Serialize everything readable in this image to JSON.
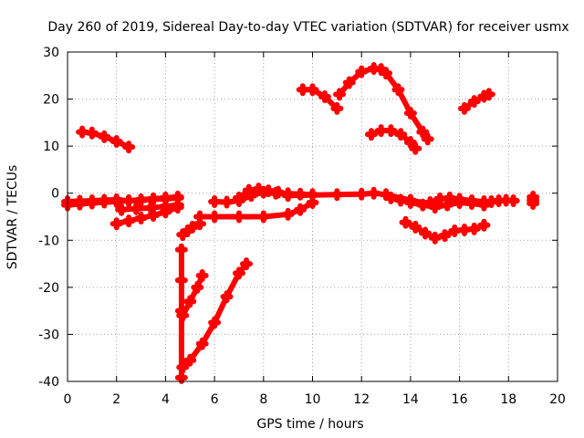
{
  "chart_data": {
    "type": "scatter",
    "title": "Day 260 of 2019, Sidereal Day-to-day VTEC variation (SDTVAR) for receiver usmx",
    "xlabel": "GPS time / hours",
    "ylabel": "SDTVAR / TECUs",
    "xlim": [
      0,
      20
    ],
    "ylim": [
      -40,
      30
    ],
    "xticks": [
      0,
      2,
      4,
      6,
      8,
      10,
      12,
      14,
      16,
      18,
      20
    ],
    "yticks": [
      -40,
      -30,
      -20,
      -10,
      0,
      10,
      20,
      30
    ],
    "grid": true,
    "legend": "none",
    "marker": "+",
    "color": "#ff0000",
    "series": [
      {
        "x": [
          0.0,
          0.5,
          1.0,
          1.5,
          2.0,
          2.5,
          3.0,
          3.5,
          4.0,
          4.5
        ],
        "y": [
          -2.5,
          -2.3,
          -2.1,
          -1.9,
          -1.8,
          -1.6,
          -1.4,
          -1.2,
          -1.0,
          -0.8
        ]
      },
      {
        "x": [
          0.0,
          0.5,
          1.0,
          1.5,
          2.0,
          2.5,
          3.0,
          3.5,
          4.0,
          4.5
        ],
        "y": [
          -1.8,
          -1.7,
          -1.6,
          -1.5,
          -1.4,
          -1.6,
          -1.5,
          -1.3,
          -1.2,
          -1.0
        ]
      },
      {
        "x": [
          0.6,
          1.0,
          1.5,
          2.0,
          2.5
        ],
        "y": [
          13.0,
          12.8,
          12.0,
          11.0,
          9.8
        ]
      },
      {
        "x": [
          2.0,
          2.5,
          3.0,
          3.5,
          4.0,
          4.5
        ],
        "y": [
          -6.5,
          -5.9,
          -5.3,
          -4.7,
          -4.0,
          -3.0
        ]
      },
      {
        "x": [
          2.2,
          2.8,
          3.4,
          4.0,
          4.5
        ],
        "y": [
          -3.5,
          -3.3,
          -3.1,
          -2.8,
          -2.5
        ]
      },
      {
        "x": [
          4.7,
          4.9,
          5.1,
          5.4
        ],
        "y": [
          -8.8,
          -8.0,
          -7.2,
          -6.5
        ]
      },
      {
        "x": [
          4.7,
          5.0,
          5.3,
          5.5
        ],
        "y": [
          -26.0,
          -23.0,
          -20.0,
          -17.5
        ]
      },
      {
        "x": [
          4.7,
          5.0,
          5.5,
          6.0,
          6.5,
          7.0,
          7.3
        ],
        "y": [
          -37.0,
          -35.5,
          -32.0,
          -27.5,
          -22.0,
          -17.0,
          -15.0
        ]
      },
      {
        "x": [
          4.65,
          4.65,
          4.65,
          4.65
        ],
        "y": [
          -12.0,
          -18.5,
          -25.0,
          -39.2
        ]
      },
      {
        "x": [
          5.4,
          6.0,
          7.0,
          8.0,
          9.0,
          9.5,
          10.0
        ],
        "y": [
          -5.0,
          -5.0,
          -5.0,
          -5.0,
          -4.5,
          -3.5,
          -2.0
        ]
      },
      {
        "x": [
          6.0,
          6.5,
          7.0,
          7.5,
          8.0,
          8.5,
          9.0,
          9.5,
          10.0
        ],
        "y": [
          -1.8,
          -1.9,
          -1.6,
          -0.5,
          0.2,
          0.0,
          -0.1,
          -0.2,
          -0.3
        ]
      },
      {
        "x": [
          7.0,
          7.4,
          7.8,
          8.2,
          8.6
        ],
        "y": [
          -1.0,
          0.6,
          0.9,
          0.5,
          0.2
        ]
      },
      {
        "x": [
          9.0,
          10.0,
          11.0,
          12.0,
          12.5,
          13.0,
          14.0,
          15.0
        ],
        "y": [
          -0.5,
          -0.4,
          -0.3,
          -0.2,
          0.0,
          -0.3,
          -1.5,
          -2.5
        ]
      },
      {
        "x": [
          9.6,
          10.0,
          10.5,
          11.0
        ],
        "y": [
          22.0,
          22.0,
          20.5,
          18.0
        ]
      },
      {
        "x": [
          11.1,
          11.5,
          12.0,
          12.5,
          12.8,
          13.0,
          13.5,
          14.0,
          14.5,
          14.7
        ],
        "y": [
          21.0,
          23.5,
          25.8,
          26.5,
          26.3,
          25.5,
          22.0,
          17.0,
          13.0,
          11.5
        ]
      },
      {
        "x": [
          12.4,
          12.8,
          13.2,
          13.6,
          14.0,
          14.2
        ],
        "y": [
          12.5,
          13.3,
          13.3,
          12.5,
          10.8,
          9.5
        ]
      },
      {
        "x": [
          13.2,
          13.6,
          14.0,
          14.5,
          15.0,
          15.5,
          16.0,
          16.5,
          17.0
        ],
        "y": [
          -1.0,
          -1.5,
          -2.0,
          -2.5,
          -3.0,
          -2.5,
          -2.0,
          -2.2,
          -2.5
        ]
      },
      {
        "x": [
          14.8,
          15.2,
          15.6,
          16.0,
          16.5,
          17.0
        ],
        "y": [
          -2.0,
          -1.2,
          -1.0,
          -1.3,
          -1.6,
          -1.8
        ]
      },
      {
        "x": [
          13.8,
          14.2,
          14.6,
          15.0,
          15.4,
          15.8,
          16.2,
          16.6,
          17.0
        ],
        "y": [
          -6.2,
          -7.2,
          -8.5,
          -9.5,
          -9.0,
          -8.0,
          -7.8,
          -7.6,
          -6.8
        ]
      },
      {
        "x": [
          16.2,
          16.6,
          17.0,
          17.2
        ],
        "y": [
          18.0,
          19.5,
          20.6,
          21.0
        ]
      },
      {
        "x": [
          17.3,
          17.6,
          17.9,
          18.2
        ],
        "y": [
          -1.8,
          -1.6,
          -1.5,
          -1.6
        ]
      },
      {
        "x": [
          19.0,
          19.0,
          19.0
        ],
        "y": [
          -0.8,
          -1.5,
          -2.2
        ]
      }
    ]
  }
}
